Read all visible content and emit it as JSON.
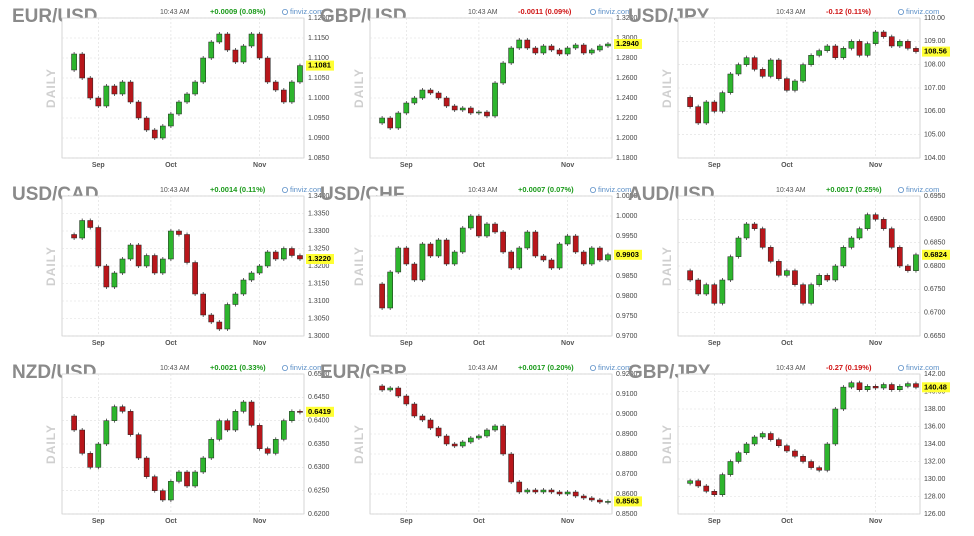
{
  "chart_data": [
    {
      "type": "candlestick",
      "title": "EUR/USD",
      "time": "10:43 AM",
      "change": "+0.0009 (0.08%)",
      "change_color": "#1a9a1a",
      "source": "finviz.com",
      "label": "DAILY",
      "up_color": "#2db52d",
      "down_color": "#b8161b",
      "values": [
        1.107,
        1.111,
        1.105,
        1.1,
        1.098,
        1.103,
        1.101,
        1.104,
        1.099,
        1.095,
        1.092,
        1.09,
        1.093,
        1.096,
        1.099,
        1.101,
        1.104,
        1.11,
        1.114,
        1.116,
        1.112,
        1.109,
        1.113,
        1.116,
        1.11,
        1.104,
        1.102,
        1.099,
        1.104,
        1.1081
      ],
      "last": {
        "value": 1.1081,
        "label": "1.1081"
      },
      "ylim": [
        1.085,
        1.12
      ],
      "yticks": [
        {
          "value": 1.12,
          "label": "1.1200"
        },
        {
          "value": 1.115,
          "label": "1.1150"
        },
        {
          "value": 1.11,
          "label": "1.1100"
        },
        {
          "value": 1.105,
          "label": "1.1050"
        },
        {
          "value": 1.1,
          "label": "1.1000"
        },
        {
          "value": 1.095,
          "label": "1.0950"
        },
        {
          "value": 1.09,
          "label": "1.0900"
        },
        {
          "value": 1.085,
          "label": "1.0850"
        }
      ],
      "xticks": [
        {
          "value": 4,
          "label": "Sep"
        },
        {
          "value": 13,
          "label": "Oct"
        },
        {
          "value": 24,
          "label": "Nov"
        }
      ]
    },
    {
      "type": "candlestick",
      "title": "GBP/USD",
      "time": "10:43 AM",
      "change": "-0.0011 (0.09%)",
      "change_color": "#d01515",
      "source": "finviz.com",
      "label": "DAILY",
      "up_color": "#2db52d",
      "down_color": "#b8161b",
      "values": [
        1.215,
        1.22,
        1.21,
        1.225,
        1.235,
        1.24,
        1.248,
        1.245,
        1.24,
        1.232,
        1.228,
        1.23,
        1.225,
        1.226,
        1.222,
        1.255,
        1.275,
        1.29,
        1.298,
        1.29,
        1.285,
        1.292,
        1.288,
        1.284,
        1.29,
        1.293,
        1.285,
        1.288,
        1.292,
        1.294
      ],
      "last": {
        "value": 1.294,
        "label": "1.2940"
      },
      "ylim": [
        1.18,
        1.32
      ],
      "yticks": [
        {
          "value": 1.32,
          "label": "1.3200"
        },
        {
          "value": 1.3,
          "label": "1.3000"
        },
        {
          "value": 1.28,
          "label": "1.2800"
        },
        {
          "value": 1.26,
          "label": "1.2600"
        },
        {
          "value": 1.24,
          "label": "1.2400"
        },
        {
          "value": 1.22,
          "label": "1.2200"
        },
        {
          "value": 1.2,
          "label": "1.2000"
        },
        {
          "value": 1.18,
          "label": "1.1800"
        }
      ],
      "xticks": [
        {
          "value": 4,
          "label": "Sep"
        },
        {
          "value": 13,
          "label": "Oct"
        },
        {
          "value": 24,
          "label": "Nov"
        }
      ]
    },
    {
      "type": "candlestick",
      "title": "USD/JPY",
      "time": "10:43 AM",
      "change": "-0.12 (0.11%)",
      "change_color": "#d01515",
      "source": "finviz.com",
      "label": "DAILY",
      "up_color": "#2db52d",
      "down_color": "#b8161b",
      "values": [
        106.6,
        106.2,
        105.5,
        106.4,
        106.0,
        106.8,
        107.6,
        108.0,
        108.3,
        107.8,
        107.5,
        108.2,
        107.4,
        106.9,
        107.3,
        108.0,
        108.4,
        108.6,
        108.8,
        108.3,
        108.7,
        109.0,
        108.4,
        108.9,
        109.4,
        109.2,
        108.8,
        109.0,
        108.7,
        108.56
      ],
      "last": {
        "value": 108.56,
        "label": "108.56"
      },
      "ylim": [
        104,
        110
      ],
      "yticks": [
        {
          "value": 110,
          "label": "110.00"
        },
        {
          "value": 109,
          "label": "109.00"
        },
        {
          "value": 108,
          "label": "108.00"
        },
        {
          "value": 107,
          "label": "107.00"
        },
        {
          "value": 106,
          "label": "106.00"
        },
        {
          "value": 105,
          "label": "105.00"
        },
        {
          "value": 104,
          "label": "104.00"
        }
      ],
      "xticks": [
        {
          "value": 4,
          "label": "Sep"
        },
        {
          "value": 13,
          "label": "Oct"
        },
        {
          "value": 24,
          "label": "Nov"
        }
      ]
    },
    {
      "type": "candlestick",
      "title": "USD/CAD",
      "time": "10:43 AM",
      "change": "+0.0014 (0.11%)",
      "change_color": "#1a9a1a",
      "source": "finviz.com",
      "label": "DAILY",
      "up_color": "#2db52d",
      "down_color": "#b8161b",
      "values": [
        1.329,
        1.328,
        1.333,
        1.331,
        1.32,
        1.314,
        1.318,
        1.322,
        1.326,
        1.32,
        1.323,
        1.318,
        1.322,
        1.33,
        1.329,
        1.321,
        1.312,
        1.306,
        1.304,
        1.302,
        1.309,
        1.312,
        1.316,
        1.318,
        1.32,
        1.324,
        1.322,
        1.325,
        1.323,
        1.322
      ],
      "last": {
        "value": 1.322,
        "label": "1.3220"
      },
      "ylim": [
        1.3,
        1.34
      ],
      "yticks": [
        {
          "value": 1.34,
          "label": "1.3400"
        },
        {
          "value": 1.335,
          "label": "1.3350"
        },
        {
          "value": 1.33,
          "label": "1.3300"
        },
        {
          "value": 1.325,
          "label": "1.3250"
        },
        {
          "value": 1.32,
          "label": "1.3200"
        },
        {
          "value": 1.315,
          "label": "1.3150"
        },
        {
          "value": 1.31,
          "label": "1.3100"
        },
        {
          "value": 1.305,
          "label": "1.3050"
        },
        {
          "value": 1.3,
          "label": "1.3000"
        }
      ],
      "xticks": [
        {
          "value": 4,
          "label": "Sep"
        },
        {
          "value": 13,
          "label": "Oct"
        },
        {
          "value": 24,
          "label": "Nov"
        }
      ]
    },
    {
      "type": "candlestick",
      "title": "USD/CHF",
      "time": "10:43 AM",
      "change": "+0.0007 (0.07%)",
      "change_color": "#1a9a1a",
      "source": "finviz.com",
      "label": "DAILY",
      "up_color": "#2db52d",
      "down_color": "#b8161b",
      "values": [
        0.983,
        0.977,
        0.986,
        0.992,
        0.988,
        0.984,
        0.993,
        0.99,
        0.994,
        0.988,
        0.991,
        0.997,
        1.0,
        0.995,
        0.998,
        0.996,
        0.991,
        0.987,
        0.992,
        0.996,
        0.99,
        0.989,
        0.987,
        0.993,
        0.995,
        0.991,
        0.988,
        0.992,
        0.989,
        0.9903
      ],
      "last": {
        "value": 0.9903,
        "label": "0.9903"
      },
      "ylim": [
        0.97,
        1.005
      ],
      "yticks": [
        {
          "value": 1.005,
          "label": "1.0050"
        },
        {
          "value": 1.0,
          "label": "1.0000"
        },
        {
          "value": 0.995,
          "label": "0.9950"
        },
        {
          "value": 0.99,
          "label": "0.9900"
        },
        {
          "value": 0.985,
          "label": "0.9850"
        },
        {
          "value": 0.98,
          "label": "0.9800"
        },
        {
          "value": 0.975,
          "label": "0.9750"
        },
        {
          "value": 0.97,
          "label": "0.9700"
        }
      ],
      "xticks": [
        {
          "value": 4,
          "label": "Sep"
        },
        {
          "value": 13,
          "label": "Oct"
        },
        {
          "value": 24,
          "label": "Nov"
        }
      ]
    },
    {
      "type": "candlestick",
      "title": "AUD/USD",
      "time": "10:43 AM",
      "change": "+0.0017 (0.25%)",
      "change_color": "#1a9a1a",
      "source": "finviz.com",
      "label": "DAILY",
      "up_color": "#2db52d",
      "down_color": "#b8161b",
      "values": [
        0.679,
        0.677,
        0.674,
        0.676,
        0.672,
        0.677,
        0.682,
        0.686,
        0.689,
        0.688,
        0.684,
        0.681,
        0.678,
        0.679,
        0.676,
        0.672,
        0.676,
        0.678,
        0.677,
        0.68,
        0.684,
        0.686,
        0.688,
        0.691,
        0.69,
        0.688,
        0.684,
        0.68,
        0.679,
        0.6824
      ],
      "last": {
        "value": 0.6824,
        "label": "0.6824"
      },
      "ylim": [
        0.665,
        0.695
      ],
      "yticks": [
        {
          "value": 0.695,
          "label": "0.6950"
        },
        {
          "value": 0.69,
          "label": "0.6900"
        },
        {
          "value": 0.685,
          "label": "0.6850"
        },
        {
          "value": 0.68,
          "label": "0.6800"
        },
        {
          "value": 0.675,
          "label": "0.6750"
        },
        {
          "value": 0.67,
          "label": "0.6700"
        },
        {
          "value": 0.665,
          "label": "0.6650"
        }
      ],
      "xticks": [
        {
          "value": 4,
          "label": "Sep"
        },
        {
          "value": 13,
          "label": "Oct"
        },
        {
          "value": 24,
          "label": "Nov"
        }
      ]
    },
    {
      "type": "candlestick",
      "title": "NZD/USD",
      "time": "10:43 AM",
      "change": "+0.0021 (0.33%)",
      "change_color": "#1a9a1a",
      "source": "finviz.com",
      "label": "DAILY",
      "up_color": "#2db52d",
      "down_color": "#b8161b",
      "values": [
        0.641,
        0.638,
        0.633,
        0.63,
        0.635,
        0.64,
        0.643,
        0.642,
        0.637,
        0.632,
        0.628,
        0.625,
        0.623,
        0.627,
        0.629,
        0.626,
        0.629,
        0.632,
        0.636,
        0.64,
        0.638,
        0.642,
        0.644,
        0.639,
        0.634,
        0.633,
        0.636,
        0.64,
        0.642,
        0.6419
      ],
      "last": {
        "value": 0.6419,
        "label": "0.6419"
      },
      "ylim": [
        0.62,
        0.65
      ],
      "yticks": [
        {
          "value": 0.65,
          "label": "0.6500"
        },
        {
          "value": 0.645,
          "label": "0.6450"
        },
        {
          "value": 0.64,
          "label": "0.6400"
        },
        {
          "value": 0.635,
          "label": "0.6350"
        },
        {
          "value": 0.63,
          "label": "0.6300"
        },
        {
          "value": 0.625,
          "label": "0.6250"
        },
        {
          "value": 0.62,
          "label": "0.6200"
        }
      ],
      "xticks": [
        {
          "value": 4,
          "label": "Sep"
        },
        {
          "value": 13,
          "label": "Oct"
        },
        {
          "value": 24,
          "label": "Nov"
        }
      ]
    },
    {
      "type": "candlestick",
      "title": "EUR/GBP",
      "time": "10:43 AM",
      "change": "+0.0017 (0.20%)",
      "change_color": "#1a9a1a",
      "source": "finviz.com",
      "label": "DAILY",
      "up_color": "#2db52d",
      "down_color": "#b8161b",
      "values": [
        0.914,
        0.912,
        0.913,
        0.909,
        0.905,
        0.899,
        0.897,
        0.893,
        0.889,
        0.885,
        0.884,
        0.886,
        0.888,
        0.889,
        0.892,
        0.894,
        0.88,
        0.866,
        0.861,
        0.862,
        0.861,
        0.862,
        0.861,
        0.86,
        0.861,
        0.859,
        0.858,
        0.857,
        0.856,
        0.8563
      ],
      "last": {
        "value": 0.8563,
        "label": "0.8563"
      },
      "ylim": [
        0.85,
        0.92
      ],
      "yticks": [
        {
          "value": 0.92,
          "label": "0.9200"
        },
        {
          "value": 0.91,
          "label": "0.9100"
        },
        {
          "value": 0.9,
          "label": "0.9000"
        },
        {
          "value": 0.89,
          "label": "0.8900"
        },
        {
          "value": 0.88,
          "label": "0.8800"
        },
        {
          "value": 0.87,
          "label": "0.8700"
        },
        {
          "value": 0.86,
          "label": "0.8600"
        },
        {
          "value": 0.85,
          "label": "0.8500"
        }
      ],
      "xticks": [
        {
          "value": 4,
          "label": "Sep"
        },
        {
          "value": 13,
          "label": "Oct"
        },
        {
          "value": 24,
          "label": "Nov"
        }
      ]
    },
    {
      "type": "candlestick",
      "title": "GBP/JPY",
      "time": "10:43 AM",
      "change": "-0.27 (0.19%)",
      "change_color": "#d01515",
      "source": "finviz.com",
      "label": "DAILY",
      "up_color": "#2db52d",
      "down_color": "#b8161b",
      "values": [
        129.5,
        129.8,
        129.2,
        128.6,
        128.2,
        130.5,
        132.0,
        133.0,
        134.0,
        134.8,
        135.2,
        134.5,
        133.8,
        133.2,
        132.6,
        132.0,
        131.3,
        131.0,
        134.0,
        138.0,
        140.5,
        141.0,
        140.2,
        140.6,
        140.4,
        140.8,
        140.2,
        140.6,
        140.9,
        140.48
      ],
      "last": {
        "value": 140.48,
        "label": "140.48"
      },
      "ylim": [
        126,
        142
      ],
      "yticks": [
        {
          "value": 142,
          "label": "142.00"
        },
        {
          "value": 140,
          "label": "140.00"
        },
        {
          "value": 138,
          "label": "138.00"
        },
        {
          "value": 136,
          "label": "136.00"
        },
        {
          "value": 134,
          "label": "134.00"
        },
        {
          "value": 132,
          "label": "132.00"
        },
        {
          "value": 130,
          "label": "130.00"
        },
        {
          "value": 128,
          "label": "128.00"
        },
        {
          "value": 126,
          "label": "126.00"
        }
      ],
      "xticks": [
        {
          "value": 4,
          "label": "Sep"
        },
        {
          "value": 13,
          "label": "Oct"
        },
        {
          "value": 24,
          "label": "Nov"
        }
      ]
    }
  ]
}
